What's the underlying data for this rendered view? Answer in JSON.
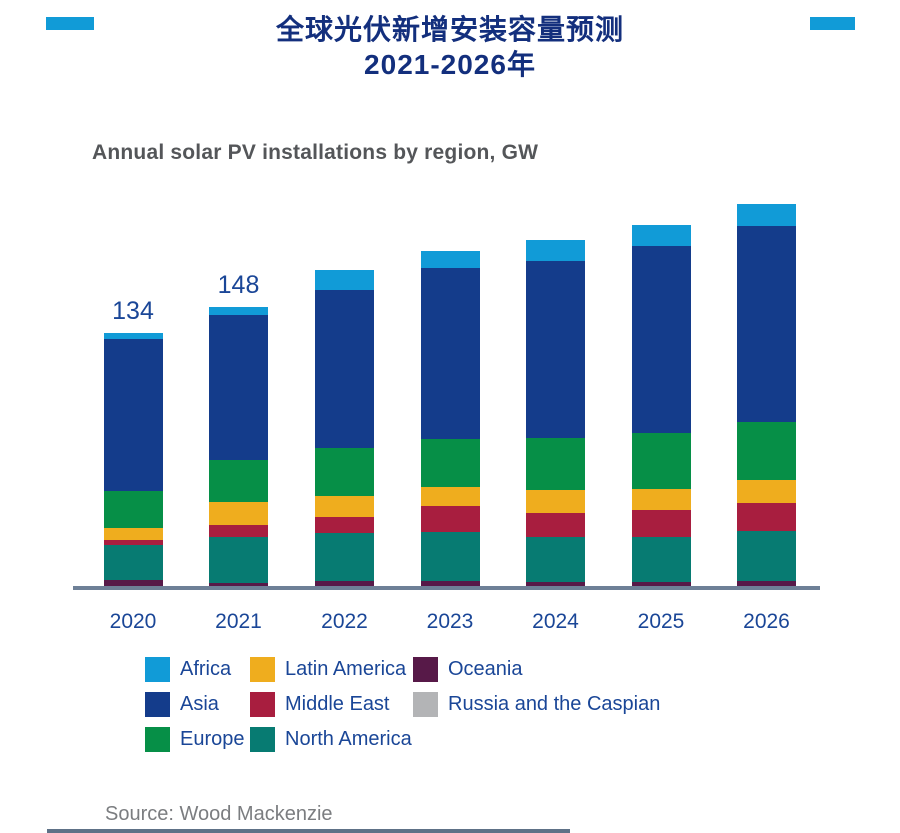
{
  "header": {
    "title_line1": "全球光伏新增安装容量预测",
    "title_line2": "2021-2026年",
    "subtitle": "Annual solar PV installations by region, GW"
  },
  "chart_data": {
    "type": "bar",
    "stacked": true,
    "title": "Annual solar PV installations by region, GW",
    "xlabel": "",
    "ylabel": "GW",
    "grid": false,
    "categories": [
      "2020",
      "2021",
      "2022",
      "2023",
      "2024",
      "2025",
      "2026"
    ],
    "series": [
      {
        "name": "Africa",
        "color": "#119bd7",
        "values": [
          3,
          4.5,
          10,
          8.5,
          11,
          11,
          11.5
        ]
      },
      {
        "name": "Asia",
        "color": "#143c8b",
        "values": [
          79.5,
          76,
          83,
          90,
          93,
          98,
          103
        ]
      },
      {
        "name": "Europe",
        "color": "#068f47",
        "values": [
          19.5,
          22,
          25,
          25,
          27,
          29.5,
          30.5
        ]
      },
      {
        "name": "Latin America",
        "color": "#efad1e",
        "values": [
          6.5,
          12,
          11.5,
          10,
          12,
          11,
          12
        ]
      },
      {
        "name": "Middle East",
        "color": "#a81e3f",
        "values": [
          2.5,
          6,
          8,
          13.5,
          12.5,
          14,
          14.5
        ]
      },
      {
        "name": "North America",
        "color": "#077b72",
        "values": [
          18.5,
          24.5,
          25.5,
          26,
          24,
          24,
          26.5
        ]
      },
      {
        "name": "Oceania",
        "color": "#571948",
        "values": [
          4,
          2.5,
          3.5,
          3.5,
          3,
          3,
          3
        ]
      },
      {
        "name": "Russia and the Caspian",
        "color": "#b3b4b6",
        "values": [
          0.5,
          0.5,
          0.5,
          0.5,
          0.5,
          0.5,
          1
        ]
      }
    ],
    "stack_order_note": "series listed top-to-bottom as displayed; bars stack bottom-up in reverse order",
    "totals": [
      134,
      148,
      167,
      177,
      183,
      191,
      202
    ],
    "bar_labels": [
      "134",
      "148",
      "",
      "",
      "",
      "",
      ""
    ],
    "legend_position": "bottom",
    "legend_columns": [
      [
        "Africa",
        "Asia",
        "Europe"
      ],
      [
        "Latin America",
        "Middle East",
        "North America"
      ],
      [
        "Oceania",
        "Russia and the Caspian"
      ]
    ]
  },
  "source": "Source: Wood Mackenzie",
  "colors": {
    "accent_bar": "#119bd7",
    "title_text": "#132f7d",
    "subtitle_text": "#545659",
    "axis_line": "#6e8097",
    "tick_label_text": "#1a4697",
    "bar_label_text": "#1a4697",
    "legend_text": "#1a4697",
    "source_text": "#7b7d80",
    "bottom_rule": "#5e7187",
    "background": "#ffffff"
  }
}
